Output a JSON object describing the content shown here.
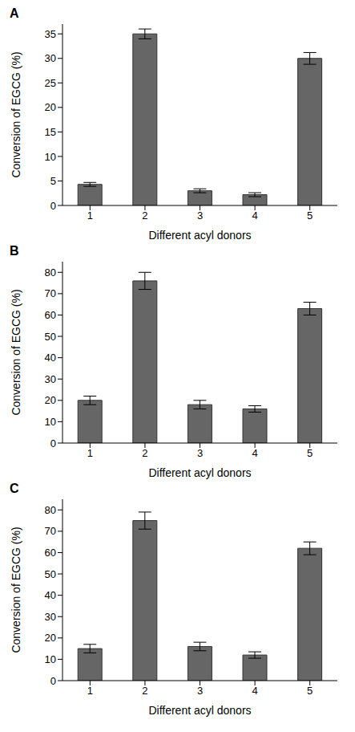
{
  "chart_data": [
    {
      "type": "bar",
      "title": "A",
      "x_label": "Different acyl donors",
      "y_label": "Conversion of EGCG (%)",
      "categories": [
        "1",
        "2",
        "3",
        "4",
        "5"
      ],
      "values": [
        4.3,
        35,
        3,
        2.2,
        30
      ],
      "errors": [
        0.4,
        1,
        0.4,
        0.4,
        1.2
      ],
      "color": "#666666",
      "ylim": [
        0,
        37
      ],
      "yticks": [
        0,
        5,
        10,
        15,
        20,
        25,
        30,
        35
      ]
    },
    {
      "type": "bar",
      "title": "B",
      "x_label": "Different acyl donors",
      "y_label": "Conversion of EGCG (%)",
      "categories": [
        "1",
        "2",
        "3",
        "4",
        "5"
      ],
      "values": [
        20,
        76,
        18,
        16,
        63
      ],
      "errors": [
        2,
        4,
        2,
        1.5,
        3
      ],
      "color": "#666666",
      "ylim": [
        0,
        85
      ],
      "yticks": [
        0,
        10,
        20,
        30,
        40,
        50,
        60,
        70,
        80
      ]
    },
    {
      "type": "bar",
      "title": "C",
      "x_label": "Different acyl donors",
      "y_label": "Conversion of EGCG (%)",
      "categories": [
        "1",
        "2",
        "3",
        "4",
        "5"
      ],
      "values": [
        15,
        75,
        16,
        12,
        62
      ],
      "errors": [
        2,
        4,
        2,
        1.5,
        3
      ],
      "color": "#666666",
      "ylim": [
        0,
        85
      ],
      "yticks": [
        0,
        10,
        20,
        30,
        40,
        50,
        60,
        70,
        80
      ]
    }
  ]
}
